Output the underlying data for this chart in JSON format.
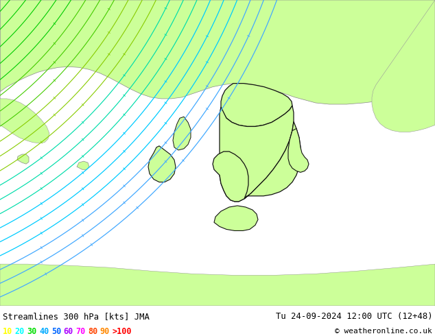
{
  "title_left": "Streamlines 300 hPa [kts] JMA",
  "title_right": "Tu 24-09-2024 12:00 UTC (12+48)",
  "copyright": "© weatheronline.co.uk",
  "legend_values": [
    "10",
    "20",
    "30",
    "40",
    "50",
    "60",
    "70",
    "80",
    "90",
    ">100"
  ],
  "legend_colors": [
    "#ffff00",
    "#00ffff",
    "#00dd00",
    "#00aaff",
    "#0066ff",
    "#aa00ff",
    "#ff00ff",
    "#ff4400",
    "#ff8800",
    "#ff0000"
  ],
  "bg_color_land": "#ccff99",
  "bg_color_sea": "#c8c8c8",
  "bg_color_bottom": "#ffffff",
  "border_color": "#111111",
  "figsize": [
    6.34,
    4.9
  ],
  "dpi": 100,
  "stream_colors": {
    "green_fast": "#00cc00",
    "green_slow": "#88dd00",
    "cyan": "#00ccff",
    "blue_light": "#44aaff",
    "blue": "#2266ff",
    "blue_dark": "#0033ee"
  }
}
